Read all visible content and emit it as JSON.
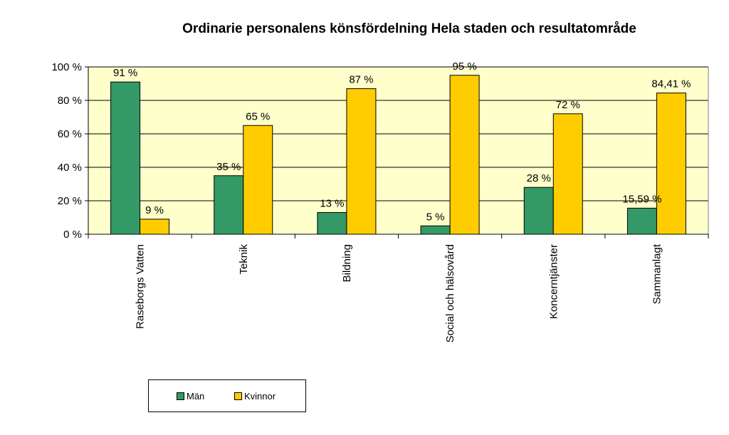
{
  "chart_data": {
    "type": "bar",
    "title": "Ordinarie personalens könsfördelning Hela staden och resultatområde",
    "categories": [
      "Raseborgs Vatten",
      "Teknik",
      "Bildning",
      "Social och hälsovård",
      "Koncerntjänster",
      "Sammanlagt"
    ],
    "series": [
      {
        "name": "Män",
        "color": "#339966",
        "values": [
          91,
          35,
          13,
          5,
          28,
          15.59
        ],
        "labels": [
          "91 %",
          "35 %",
          "13 %",
          "5 %",
          "28 %",
          "15,59 %"
        ]
      },
      {
        "name": "Kvinnor",
        "color": "#FFCC00",
        "values": [
          9,
          65,
          87,
          95,
          72,
          84.41
        ],
        "labels": [
          "9 %",
          "65 %",
          "87 %",
          "95 %",
          "72 %",
          "84,41 %"
        ]
      }
    ],
    "ylim": [
      0,
      100
    ],
    "yticks": [
      0,
      20,
      40,
      60,
      80,
      100
    ],
    "ytick_labels": [
      "0 %",
      "20 %",
      "40 %",
      "60 %",
      "80 %",
      "100 %"
    ],
    "grid": true,
    "plot_background": "#FFFFCC",
    "legend_position": "bottom-left"
  }
}
